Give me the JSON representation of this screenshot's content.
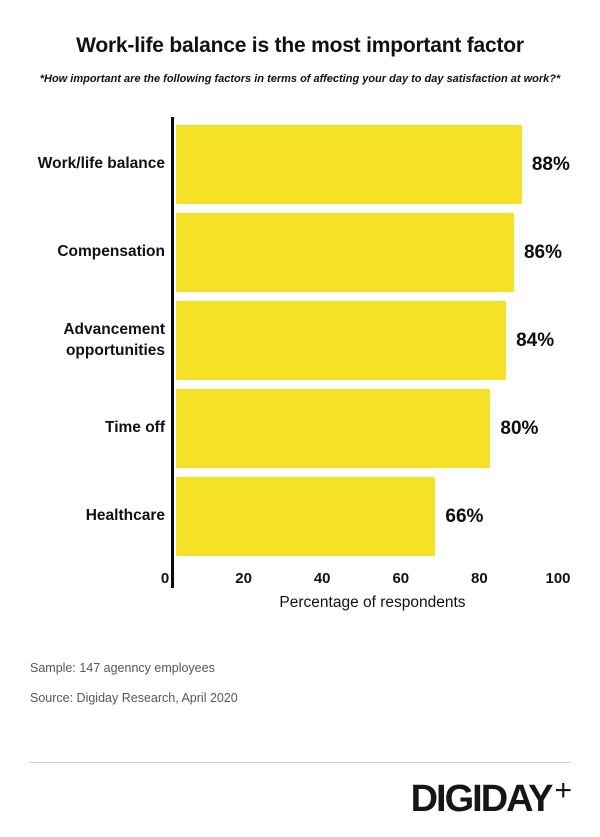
{
  "header": {
    "title": "Work-life balance is the most important factor",
    "subtitle": "*How important are the following factors in terms of affecting your day to day satisfaction at work?*"
  },
  "chart_data": {
    "type": "bar",
    "orientation": "horizontal",
    "categories": [
      "Work/life balance",
      "Compensation",
      "Advancement opportunities",
      "Time off",
      "Healthcare"
    ],
    "values": [
      88,
      86,
      84,
      80,
      66
    ],
    "value_labels": [
      "88%",
      "86%",
      "84%",
      "80%",
      "66%"
    ],
    "x_ticks": [
      "0",
      "20",
      "40",
      "60",
      "80",
      "100"
    ],
    "x_tick_values": [
      0,
      20,
      40,
      60,
      80,
      100
    ],
    "xlim": [
      0,
      100
    ],
    "xlabel": "Percentage of respondents",
    "grid": false,
    "legend": "none",
    "bar_color": "#F5E227",
    "axis_color": "#0a0a0a",
    "title": "Work-life balance is the most important factor"
  },
  "footer": {
    "sample": "Sample: 147 agenncy employees",
    "source": "Source: Digiday Research, April 2020"
  },
  "branding": {
    "logo_text": "DIGIDAY",
    "logo_plus": "+"
  }
}
